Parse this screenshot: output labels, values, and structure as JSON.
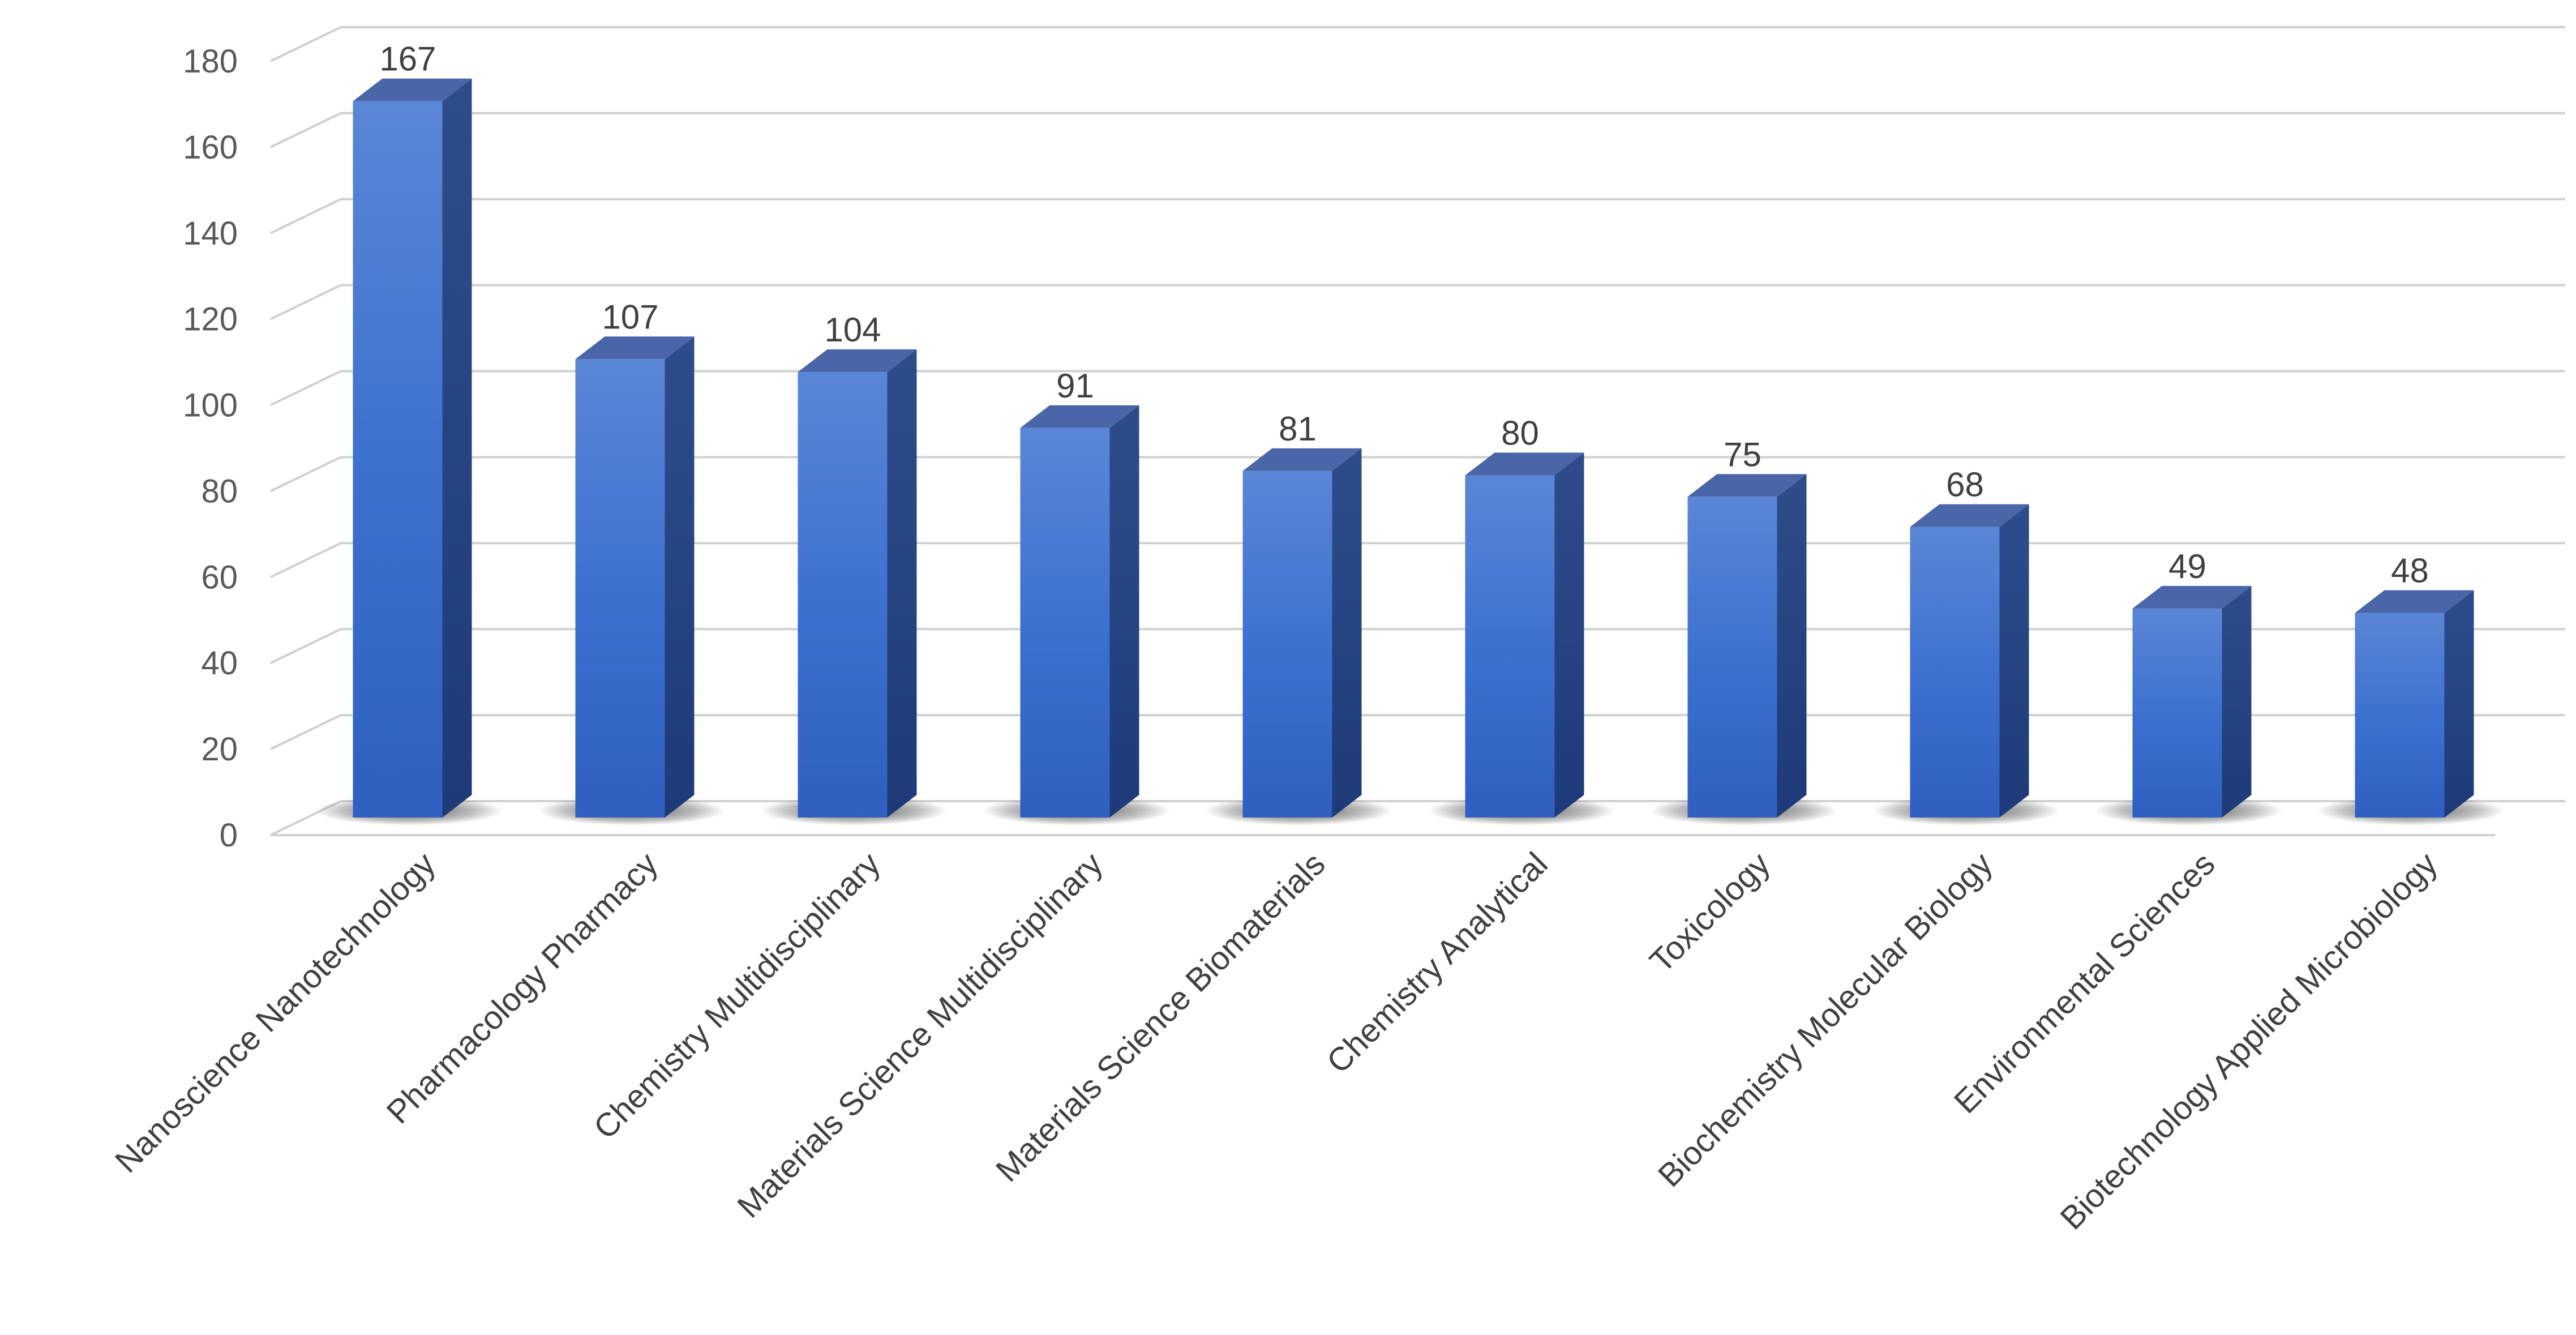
{
  "chart_data": {
    "type": "bar",
    "style": "3d-column",
    "title": "",
    "xlabel": "",
    "ylabel": "",
    "ylim": [
      0,
      180
    ],
    "yticks": [
      0,
      20,
      40,
      60,
      80,
      100,
      120,
      140,
      160,
      180
    ],
    "grid": true,
    "legend": "none",
    "bar_color": "#3A6BC9",
    "bar_side_color": "#1F3E7A",
    "bar_top_color": "#4A66A8",
    "categories": [
      "Nanoscience Nanotechnology",
      "Pharmacology Pharmacy",
      "Chemistry Multidisciplinary",
      "Materials Science Multidisciplinary",
      "Materials Science Biomaterials",
      "Chemistry Analytical",
      "Toxicology",
      "Biochemistry Molecular Biology",
      "Environmental Sciences",
      "Biotechnology Applied Microbiology"
    ],
    "values": [
      167,
      107,
      104,
      91,
      81,
      80,
      75,
      68,
      49,
      48
    ]
  }
}
